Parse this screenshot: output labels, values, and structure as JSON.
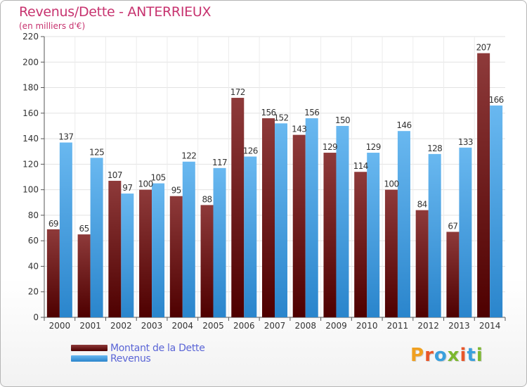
{
  "header": {
    "title": "Revenus/Dette - ANTERRIEUX",
    "subtitle": "(en milliers d'€)"
  },
  "legend": {
    "debt_label": "Montant de la Dette",
    "revenue_label": "Revenus"
  },
  "logo": {
    "text": "Proxiti",
    "colors": [
      "#f0a020",
      "#e8562a",
      "#3aa0dd",
      "#7cb82f",
      "#e8562a",
      "#3aa0dd",
      "#7cb82f"
    ]
  },
  "colors": {
    "debt_top": "#8e3a3a",
    "debt_bottom": "#4e0000",
    "revenue_top": "#69b8f0",
    "revenue_bottom": "#2a85cc",
    "title": "#c7336f",
    "legend_text": "#5a65d6"
  },
  "chart_data": {
    "type": "bar",
    "title": "Revenus/Dette - ANTERRIEUX",
    "subtitle": "(en milliers d'€)",
    "xlabel": "",
    "ylabel": "",
    "ylim": [
      0,
      220
    ],
    "yticks": [
      0,
      20,
      40,
      60,
      80,
      100,
      120,
      140,
      160,
      180,
      200,
      220
    ],
    "grid": true,
    "legend_position": "bottom-left",
    "categories": [
      "2000",
      "2001",
      "2002",
      "2003",
      "2004",
      "2005",
      "2006",
      "2007",
      "2008",
      "2009",
      "2010",
      "2011",
      "2012",
      "2013",
      "2014"
    ],
    "series": [
      {
        "name": "Montant de la Dette",
        "values": [
          69,
          65,
          107,
          100,
          95,
          88,
          172,
          156,
          143,
          129,
          114,
          100,
          84,
          67,
          207
        ]
      },
      {
        "name": "Revenus",
        "values": [
          137,
          125,
          97,
          105,
          122,
          117,
          126,
          152,
          156,
          150,
          129,
          146,
          128,
          133,
          166
        ]
      }
    ]
  }
}
